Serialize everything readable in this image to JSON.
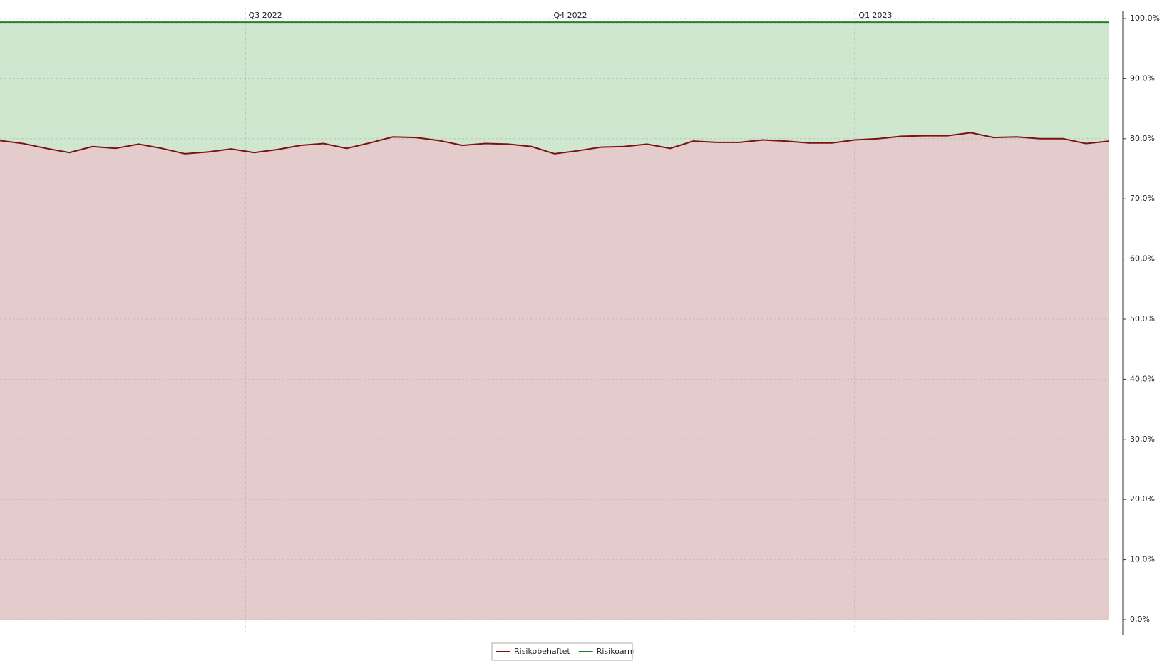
{
  "chart_data": {
    "type": "stacked-area",
    "categories": [
      null,
      null,
      null,
      null,
      null,
      null,
      null,
      null,
      null,
      null,
      null,
      null,
      null,
      null,
      null,
      null,
      null,
      null,
      null,
      null,
      null,
      null,
      null,
      null,
      null,
      null,
      null,
      null,
      null,
      null,
      null,
      null,
      null,
      null,
      null,
      null,
      null,
      null,
      null,
      null,
      null,
      null,
      null,
      null,
      null,
      null,
      null,
      null,
      null
    ],
    "series": [
      {
        "name": "Risikobehaftet",
        "color": "#7b1111",
        "fill": "#e4cbcc",
        "values": [
          79.7,
          79.2,
          78.4,
          77.7,
          78.7,
          78.4,
          79.1,
          78.4,
          77.5,
          77.8,
          78.3,
          77.7,
          78.2,
          78.9,
          79.2,
          78.4,
          79.3,
          80.3,
          80.2,
          79.7,
          78.9,
          79.2,
          79.1,
          78.7,
          77.5,
          78.0,
          78.6,
          78.7,
          79.1,
          78.4,
          79.6,
          79.4,
          79.4,
          79.8,
          79.6,
          79.3,
          79.3,
          79.8,
          80.0,
          80.4,
          80.5,
          80.5,
          81.0,
          80.2,
          80.3,
          80.0,
          80.0,
          79.2,
          79.6
        ]
      },
      {
        "name": "Risikoarm",
        "color": "#2a7d2a",
        "fill": "#cfe6cf",
        "values": [
          19.7,
          20.2,
          21.0,
          21.7,
          20.7,
          21.0,
          20.3,
          21.0,
          21.9,
          21.6,
          21.1,
          21.7,
          21.2,
          20.5,
          20.2,
          21.0,
          20.1,
          19.1,
          19.2,
          19.7,
          20.5,
          20.2,
          20.3,
          20.7,
          21.9,
          21.4,
          20.8,
          20.7,
          20.3,
          21.0,
          19.8,
          20.0,
          20.0,
          19.6,
          19.8,
          20.1,
          20.1,
          19.6,
          19.4,
          19.0,
          18.9,
          18.9,
          18.4,
          19.2,
          19.1,
          19.4,
          19.4,
          20.2,
          19.8
        ]
      }
    ],
    "xticks": [
      {
        "value": 10.6,
        "label": "Q3 2022"
      },
      {
        "value": 23.8,
        "label": "Q4 2022"
      },
      {
        "value": 37.0,
        "label": "Q1 2023"
      }
    ],
    "ylim": [
      0,
      100
    ],
    "yticks": [
      {
        "value": 0,
        "label": "0,0%"
      },
      {
        "value": 10,
        "label": "10,0%"
      },
      {
        "value": 20,
        "label": "20,0%"
      },
      {
        "value": 30,
        "label": "30,0%"
      },
      {
        "value": 40,
        "label": "40,0%"
      },
      {
        "value": 50,
        "label": "50,0%"
      },
      {
        "value": 60,
        "label": "60,0%"
      },
      {
        "value": 70,
        "label": "70,0%"
      },
      {
        "value": 80,
        "label": "80,0%"
      },
      {
        "value": 90,
        "label": "90,0%"
      },
      {
        "value": 100,
        "label": "100,0%"
      }
    ],
    "grid": true,
    "legend": "bottom"
  }
}
